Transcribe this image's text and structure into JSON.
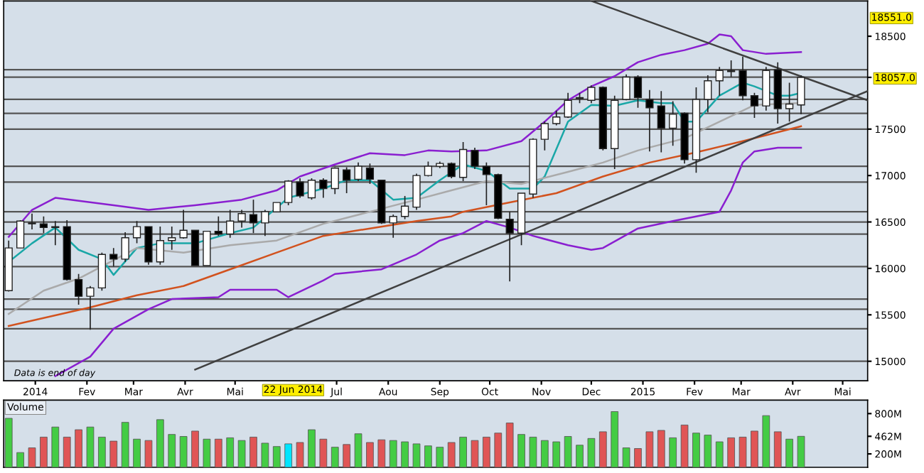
{
  "chart_data": [
    {
      "type": "candlestick",
      "x": [
        "2013-12-16",
        "2013-12-23",
        "2013-12-30",
        "2014-01-06",
        "2014-01-13",
        "2014-01-20",
        "2014-01-27",
        "2014-02-03",
        "2014-02-10",
        "2014-02-17",
        "2014-02-24",
        "2014-03-03",
        "2014-03-10",
        "2014-03-17",
        "2014-03-24",
        "2014-03-31",
        "2014-04-07",
        "2014-04-14",
        "2014-04-21",
        "2014-04-28",
        "2014-05-05",
        "2014-05-12",
        "2014-05-19",
        "2014-05-26",
        "2014-06-02",
        "2014-06-09",
        "2014-06-16",
        "2014-06-23",
        "2014-06-30",
        "2014-07-07",
        "2014-07-14",
        "2014-07-21",
        "2014-07-28",
        "2014-08-04",
        "2014-08-11",
        "2014-08-18",
        "2014-08-25",
        "2014-09-01",
        "2014-09-08",
        "2014-09-15",
        "2014-09-22",
        "2014-09-29",
        "2014-10-06",
        "2014-10-13",
        "2014-10-20",
        "2014-10-27",
        "2014-11-03",
        "2014-11-10",
        "2014-11-17",
        "2014-11-24",
        "2014-12-01",
        "2014-12-08",
        "2014-12-15",
        "2014-12-22",
        "2014-12-29",
        "2015-01-05",
        "2015-01-12",
        "2015-01-19",
        "2015-01-26",
        "2015-02-02",
        "2015-02-09",
        "2015-02-16",
        "2015-02-23",
        "2015-03-02",
        "2015-03-09",
        "2015-03-16",
        "2015-03-23",
        "2015-03-30",
        "2015-04-06"
      ],
      "ohlc": [
        [
          15760,
          16300,
          15750,
          16220
        ],
        [
          16220,
          16520,
          16220,
          16510
        ],
        [
          16490,
          16590,
          16420,
          16480
        ],
        [
          16480,
          16560,
          16380,
          16440
        ],
        [
          16440,
          16510,
          16250,
          16450
        ],
        [
          16450,
          16520,
          15870,
          15880
        ],
        [
          15880,
          15940,
          15610,
          15700
        ],
        [
          15700,
          15810,
          15340,
          15790
        ],
        [
          15790,
          16170,
          15760,
          16150
        ],
        [
          16150,
          16220,
          16020,
          16100
        ],
        [
          16100,
          16390,
          16070,
          16330
        ],
        [
          16330,
          16510,
          16270,
          16450
        ],
        [
          16450,
          16450,
          16040,
          16070
        ],
        [
          16070,
          16450,
          16040,
          16300
        ],
        [
          16300,
          16450,
          16200,
          16330
        ],
        [
          16330,
          16630,
          16320,
          16410
        ],
        [
          16410,
          16410,
          16030,
          16030
        ],
        [
          16030,
          16400,
          16030,
          16400
        ],
        [
          16400,
          16560,
          16350,
          16370
        ],
        [
          16370,
          16630,
          16330,
          16510
        ],
        [
          16510,
          16630,
          16440,
          16590
        ],
        [
          16580,
          16740,
          16380,
          16490
        ],
        [
          16490,
          16630,
          16350,
          16610
        ],
        [
          16610,
          16710,
          16610,
          16710
        ],
        [
          16710,
          16950,
          16680,
          16940
        ],
        [
          16930,
          16970,
          16760,
          16780
        ],
        [
          16760,
          16970,
          16740,
          16950
        ],
        [
          16950,
          16970,
          16760,
          16860
        ],
        [
          16860,
          17090,
          16800,
          17080
        ],
        [
          17060,
          17090,
          16810,
          16950
        ],
        [
          16960,
          17140,
          16940,
          17100
        ],
        [
          17080,
          17130,
          16910,
          16960
        ],
        [
          16950,
          16950,
          16480,
          16490
        ],
        [
          16490,
          16580,
          16330,
          16560
        ],
        [
          16560,
          16780,
          16530,
          16670
        ],
        [
          16660,
          17020,
          16630,
          17000
        ],
        [
          17000,
          17150,
          16990,
          17100
        ],
        [
          17100,
          17150,
          17080,
          17130
        ],
        [
          17130,
          17140,
          16970,
          16990
        ],
        [
          16980,
          17360,
          16940,
          17280
        ],
        [
          17270,
          17300,
          17070,
          17100
        ],
        [
          17100,
          17140,
          16680,
          17010
        ],
        [
          17010,
          17020,
          16530,
          16540
        ],
        [
          16530,
          16610,
          15860,
          16380
        ],
        [
          16380,
          16810,
          16250,
          16810
        ],
        [
          16800,
          17400,
          16760,
          17390
        ],
        [
          17390,
          17580,
          17270,
          17560
        ],
        [
          17560,
          17700,
          17540,
          17630
        ],
        [
          17630,
          17890,
          17620,
          17810
        ],
        [
          17830,
          17890,
          17780,
          17840
        ],
        [
          17810,
          17970,
          17780,
          17950
        ],
        [
          17950,
          17960,
          17270,
          17290
        ],
        [
          17290,
          17860,
          17070,
          17810
        ],
        [
          17820,
          18090,
          17810,
          18060
        ],
        [
          18060,
          18080,
          17730,
          17840
        ],
        [
          17820,
          17920,
          17260,
          17730
        ],
        [
          17750,
          17910,
          17250,
          17510
        ],
        [
          17510,
          17800,
          17320,
          17660
        ],
        [
          17670,
          17680,
          17130,
          17170
        ],
        [
          17170,
          17950,
          17030,
          17820
        ],
        [
          17820,
          18080,
          17680,
          18020
        ],
        [
          18020,
          18170,
          17860,
          18130
        ],
        [
          18120,
          18240,
          18060,
          18130
        ],
        [
          18130,
          18280,
          17810,
          17860
        ],
        [
          17860,
          17890,
          17620,
          17750
        ],
        [
          17750,
          18170,
          17700,
          18130
        ],
        [
          18140,
          18220,
          17560,
          17720
        ],
        [
          17720,
          18000,
          17580,
          17770
        ],
        [
          17760,
          18080,
          17660,
          18057
        ]
      ],
      "series": [
        {
          "type": "line",
          "color": "#8a1fd0",
          "x": [
            "2013-12-16",
            "2013-12-30",
            "2014-01-13",
            "2014-02-17",
            "2014-03-10",
            "2014-04-07",
            "2014-05-05",
            "2014-05-26",
            "2014-06-09",
            "2014-06-30",
            "2014-07-21",
            "2014-08-11",
            "2014-08-25",
            "2014-09-08",
            "2014-09-29",
            "2014-10-20",
            "2014-11-03",
            "2014-11-17",
            "2014-12-01",
            "2014-12-15",
            "2014-12-29",
            "2015-01-12",
            "2015-01-26",
            "2015-02-09",
            "2015-02-16",
            "2015-02-23",
            "2015-03-02",
            "2015-03-16",
            "2015-04-06"
          ],
          "values": [
            16340,
            16630,
            16760,
            16680,
            16630,
            16680,
            16740,
            16840,
            16990,
            17120,
            17240,
            17220,
            17270,
            17260,
            17270,
            17370,
            17580,
            17810,
            17960,
            18070,
            18220,
            18300,
            18350,
            18420,
            18520,
            18500,
            18350,
            18310,
            18330
          ]
        },
        {
          "type": "line",
          "color": "#8a1fd0",
          "x": [
            "2014-01-13",
            "2014-02-03",
            "2014-02-17",
            "2014-03-10",
            "2014-03-24",
            "2014-04-21",
            "2014-04-28",
            "2014-05-26",
            "2014-06-02",
            "2014-06-23",
            "2014-06-30",
            "2014-07-28",
            "2014-08-18",
            "2014-09-01",
            "2014-09-15",
            "2014-09-29",
            "2014-10-13",
            "2014-10-27",
            "2014-11-17",
            "2014-12-01",
            "2014-12-08",
            "2014-12-29",
            "2015-01-19",
            "2015-02-02",
            "2015-02-16",
            "2015-02-23",
            "2015-03-02",
            "2015-03-09",
            "2015-03-23",
            "2015-04-06"
          ],
          "values": [
            14840,
            15050,
            15350,
            15560,
            15670,
            15690,
            15770,
            15770,
            15690,
            15870,
            15940,
            15990,
            16150,
            16300,
            16380,
            16510,
            16440,
            16350,
            16250,
            16200,
            16220,
            16430,
            16510,
            16560,
            16610,
            16840,
            17140,
            17260,
            17300,
            17300
          ]
        },
        {
          "type": "line",
          "color": "#1aa7a7",
          "x": [
            "2013-12-16",
            "2013-12-30",
            "2014-01-13",
            "2014-01-27",
            "2014-02-10",
            "2014-02-17",
            "2014-03-03",
            "2014-03-17",
            "2014-04-07",
            "2014-04-28",
            "2014-05-12",
            "2014-06-02",
            "2014-06-23",
            "2014-07-07",
            "2014-07-21",
            "2014-08-04",
            "2014-08-18",
            "2014-09-01",
            "2014-09-15",
            "2014-09-29",
            "2014-10-13",
            "2014-10-27",
            "2014-11-03",
            "2014-11-17",
            "2014-12-01",
            "2014-12-15",
            "2014-12-29",
            "2015-01-12",
            "2015-01-19",
            "2015-01-26",
            "2015-02-02",
            "2015-02-16",
            "2015-03-02",
            "2015-03-09",
            "2015-03-23",
            "2015-03-30",
            "2015-04-06"
          ],
          "values": [
            16070,
            16270,
            16440,
            16200,
            16100,
            15930,
            16220,
            16270,
            16270,
            16380,
            16440,
            16760,
            16860,
            16950,
            16950,
            16740,
            16760,
            16950,
            17120,
            17050,
            16860,
            16860,
            16990,
            17580,
            17760,
            17750,
            17810,
            17780,
            17780,
            17580,
            17580,
            17860,
            18000,
            17960,
            17860,
            17860,
            17890
          ]
        },
        {
          "type": "line",
          "color": "#aaaaaa",
          "x": [
            "2013-12-16",
            "2014-01-06",
            "2014-01-27",
            "2014-03-03",
            "2014-03-31",
            "2014-04-28",
            "2014-05-26",
            "2014-06-23",
            "2014-07-21",
            "2014-08-18",
            "2014-09-08",
            "2014-09-29",
            "2014-10-20",
            "2014-11-17",
            "2014-12-08",
            "2014-12-29",
            "2015-01-26",
            "2015-02-16",
            "2015-03-09",
            "2015-04-06"
          ],
          "values": [
            15510,
            15760,
            15890,
            16220,
            16170,
            16250,
            16300,
            16480,
            16610,
            16740,
            16840,
            16940,
            16910,
            17040,
            17140,
            17270,
            17400,
            17580,
            17760,
            17780
          ]
        },
        {
          "type": "line",
          "color": "#d2521e",
          "x": [
            "2013-12-16",
            "2014-02-03",
            "2014-03-03",
            "2014-03-31",
            "2014-04-28",
            "2014-05-26",
            "2014-06-23",
            "2014-07-21",
            "2014-08-18",
            "2014-09-08",
            "2014-09-15",
            "2014-10-13",
            "2014-11-10",
            "2014-12-08",
            "2015-01-05",
            "2015-02-02",
            "2015-03-02",
            "2015-04-06"
          ],
          "values": [
            15380,
            15580,
            15710,
            15810,
            15990,
            16170,
            16350,
            16430,
            16510,
            16560,
            16610,
            16710,
            16810,
            16990,
            17140,
            17250,
            17370,
            17530
          ]
        },
        {
          "type": "line",
          "color": "#404040",
          "x": [
            "2014-12-01",
            "2015-05-16"
          ],
          "values": [
            18880,
            17810
          ]
        },
        {
          "type": "line",
          "color": "#404040",
          "x": [
            "2014-04-07",
            "2015-05-16"
          ],
          "values": [
            14910,
            17910
          ]
        }
      ],
      "ref_lines": [
        {
          "axis": "y",
          "value": 18140,
          "color": "#555555"
        },
        {
          "axis": "y",
          "value": 18060,
          "color": "#555555"
        },
        {
          "axis": "y",
          "value": 17820,
          "color": "#555555"
        },
        {
          "axis": "y",
          "value": 17670,
          "color": "#555555"
        },
        {
          "axis": "y",
          "value": 17500,
          "color": "#555555"
        },
        {
          "axis": "y",
          "value": 17100,
          "color": "#555555"
        },
        {
          "axis": "y",
          "value": 16930,
          "color": "#555555"
        },
        {
          "axis": "y",
          "value": 16610,
          "color": "#555555"
        },
        {
          "axis": "y",
          "value": 16500,
          "color": "#555555"
        },
        {
          "axis": "y",
          "value": 16370,
          "color": "#555555"
        },
        {
          "axis": "y",
          "value": 16020,
          "color": "#555555"
        },
        {
          "axis": "y",
          "value": 15670,
          "color": "#555555"
        },
        {
          "axis": "y",
          "value": 15560,
          "color": "#555555"
        },
        {
          "axis": "y",
          "value": 15350,
          "color": "#555555"
        },
        {
          "axis": "y",
          "value": 15000,
          "color": "#555555"
        }
      ],
      "xlim": [
        "2013-12-13",
        "2015-05-16"
      ],
      "ylim": [
        14790,
        18880
      ],
      "xticks": [
        {
          "value": "2014-01-01",
          "label": "2014"
        },
        {
          "value": "2014-02-01",
          "label": "Fev"
        },
        {
          "value": "2014-03-01",
          "label": "Mar"
        },
        {
          "value": "2014-04-01",
          "label": "Avr"
        },
        {
          "value": "2014-05-01",
          "label": "Mai"
        },
        {
          "value": "2014-07-01",
          "label": "Jul"
        },
        {
          "value": "2014-08-01",
          "label": "Aou"
        },
        {
          "value": "2014-09-01",
          "label": "Sep"
        },
        {
          "value": "2014-10-01",
          "label": "Oct"
        },
        {
          "value": "2014-11-01",
          "label": "Nov"
        },
        {
          "value": "2014-12-01",
          "label": "Dec"
        },
        {
          "value": "2015-01-01",
          "label": "2015"
        },
        {
          "value": "2015-02-01",
          "label": "Fev"
        },
        {
          "value": "2015-03-01",
          "label": "Mar"
        },
        {
          "value": "2015-04-01",
          "label": "Avr"
        },
        {
          "value": "2015-05-01",
          "label": "Mai"
        }
      ],
      "yticks": [
        15000,
        15500,
        16000,
        16500,
        17000,
        17500,
        {
          "value": 18057,
          "label": "18057.0"
        },
        18500
      ],
      "annotations": [
        "Data is end of day",
        "22 Jun 2014",
        "18551.0"
      ],
      "legend": false
    },
    {
      "type": "bar",
      "title": "Volume",
      "x": [
        "2013-12-16",
        "2013-12-23",
        "2013-12-30",
        "2014-01-06",
        "2014-01-13",
        "2014-01-20",
        "2014-01-27",
        "2014-02-03",
        "2014-02-10",
        "2014-02-17",
        "2014-02-24",
        "2014-03-03",
        "2014-03-10",
        "2014-03-17",
        "2014-03-24",
        "2014-03-31",
        "2014-04-07",
        "2014-04-14",
        "2014-04-21",
        "2014-04-28",
        "2014-05-05",
        "2014-05-12",
        "2014-05-19",
        "2014-05-26",
        "2014-06-02",
        "2014-06-09",
        "2014-06-16",
        "2014-06-23",
        "2014-06-30",
        "2014-07-07",
        "2014-07-14",
        "2014-07-21",
        "2014-07-28",
        "2014-08-04",
        "2014-08-11",
        "2014-08-18",
        "2014-08-25",
        "2014-09-01",
        "2014-09-08",
        "2014-09-15",
        "2014-09-22",
        "2014-09-29",
        "2014-10-06",
        "2014-10-13",
        "2014-10-20",
        "2014-10-27",
        "2014-11-03",
        "2014-11-10",
        "2014-11-17",
        "2014-11-24",
        "2014-12-01",
        "2014-12-08",
        "2014-12-15",
        "2014-12-22",
        "2014-12-29",
        "2015-01-05",
        "2015-01-12",
        "2015-01-19",
        "2015-01-26",
        "2015-02-02",
        "2015-02-09",
        "2015-02-16",
        "2015-02-23",
        "2015-03-02",
        "2015-03-09",
        "2015-03-16",
        "2015-03-23",
        "2015-03-30",
        "2015-04-06"
      ],
      "values": [
        730,
        220,
        290,
        450,
        600,
        450,
        560,
        600,
        450,
        390,
        670,
        420,
        400,
        710,
        490,
        460,
        540,
        420,
        420,
        440,
        400,
        450,
        360,
        310,
        350,
        370,
        560,
        420,
        300,
        340,
        500,
        370,
        410,
        400,
        380,
        350,
        320,
        300,
        370,
        450,
        400,
        450,
        510,
        660,
        490,
        450,
        400,
        380,
        460,
        330,
        430,
        530,
        830,
        290,
        280,
        530,
        550,
        440,
        630,
        510,
        480,
        380,
        440,
        450,
        540,
        770,
        530,
        420,
        462
      ],
      "colors": [
        "#44cc44",
        "#44cc44",
        "#e05555",
        "#e05555",
        "#44cc44",
        "#e05555",
        "#e05555",
        "#44cc44",
        "#44cc44",
        "#e05555",
        "#44cc44",
        "#44cc44",
        "#e05555",
        "#44cc44",
        "#44cc44",
        "#44cc44",
        "#e05555",
        "#44cc44",
        "#e05555",
        "#44cc44",
        "#44cc44",
        "#e05555",
        "#44cc44",
        "#44cc44",
        "#00e5ff",
        "#e05555",
        "#44cc44",
        "#e05555",
        "#44cc44",
        "#e05555",
        "#44cc44",
        "#e05555",
        "#e05555",
        "#44cc44",
        "#44cc44",
        "#44cc44",
        "#44cc44",
        "#44cc44",
        "#e05555",
        "#44cc44",
        "#e05555",
        "#e05555",
        "#e05555",
        "#e05555",
        "#44cc44",
        "#44cc44",
        "#44cc44",
        "#44cc44",
        "#44cc44",
        "#44cc44",
        "#44cc44",
        "#e05555",
        "#44cc44",
        "#44cc44",
        "#e05555",
        "#e05555",
        "#e05555",
        "#44cc44",
        "#e05555",
        "#44cc44",
        "#44cc44",
        "#44cc44",
        "#e05555",
        "#e05555",
        "#e05555",
        "#44cc44",
        "#e05555",
        "#44cc44",
        "#44cc44"
      ],
      "xlim": [
        "2013-12-13",
        "2015-05-16"
      ],
      "ylim": [
        0,
        1000
      ],
      "yticks": [
        {
          "value": 200,
          "label": "200M"
        },
        {
          "value": 462,
          "label": "462M"
        },
        {
          "value": 800,
          "label": "800M"
        }
      ],
      "tick_labels": "y",
      "legend": false
    }
  ]
}
